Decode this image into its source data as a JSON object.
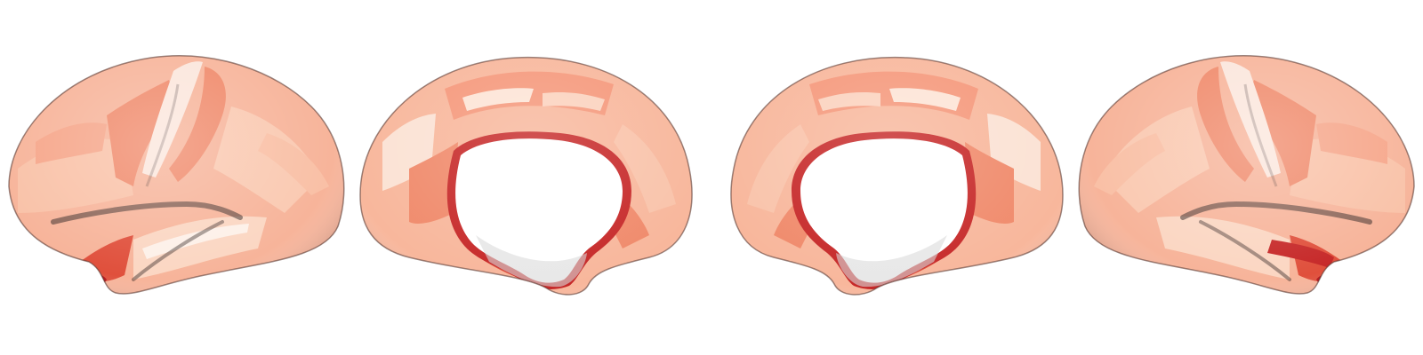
{
  "figure": {
    "views": [
      {
        "hemisphere": "left",
        "view": "lateral"
      },
      {
        "hemisphere": "left",
        "view": "medial"
      },
      {
        "hemisphere": "right",
        "view": "medial"
      },
      {
        "hemisphere": "right",
        "view": "lateral"
      }
    ],
    "colormap": "Reds",
    "colors": {
      "background": "#ffffff",
      "lightest": "#fde4d6",
      "light": "#f9c7ae",
      "mid_light": "#f7a98b",
      "mid": "#f08a6b",
      "strong": "#e0503c",
      "darkest": "#b1141a",
      "sulcus_shadow": "#3a2c2a",
      "medial_wall": "#ffffff"
    }
  }
}
